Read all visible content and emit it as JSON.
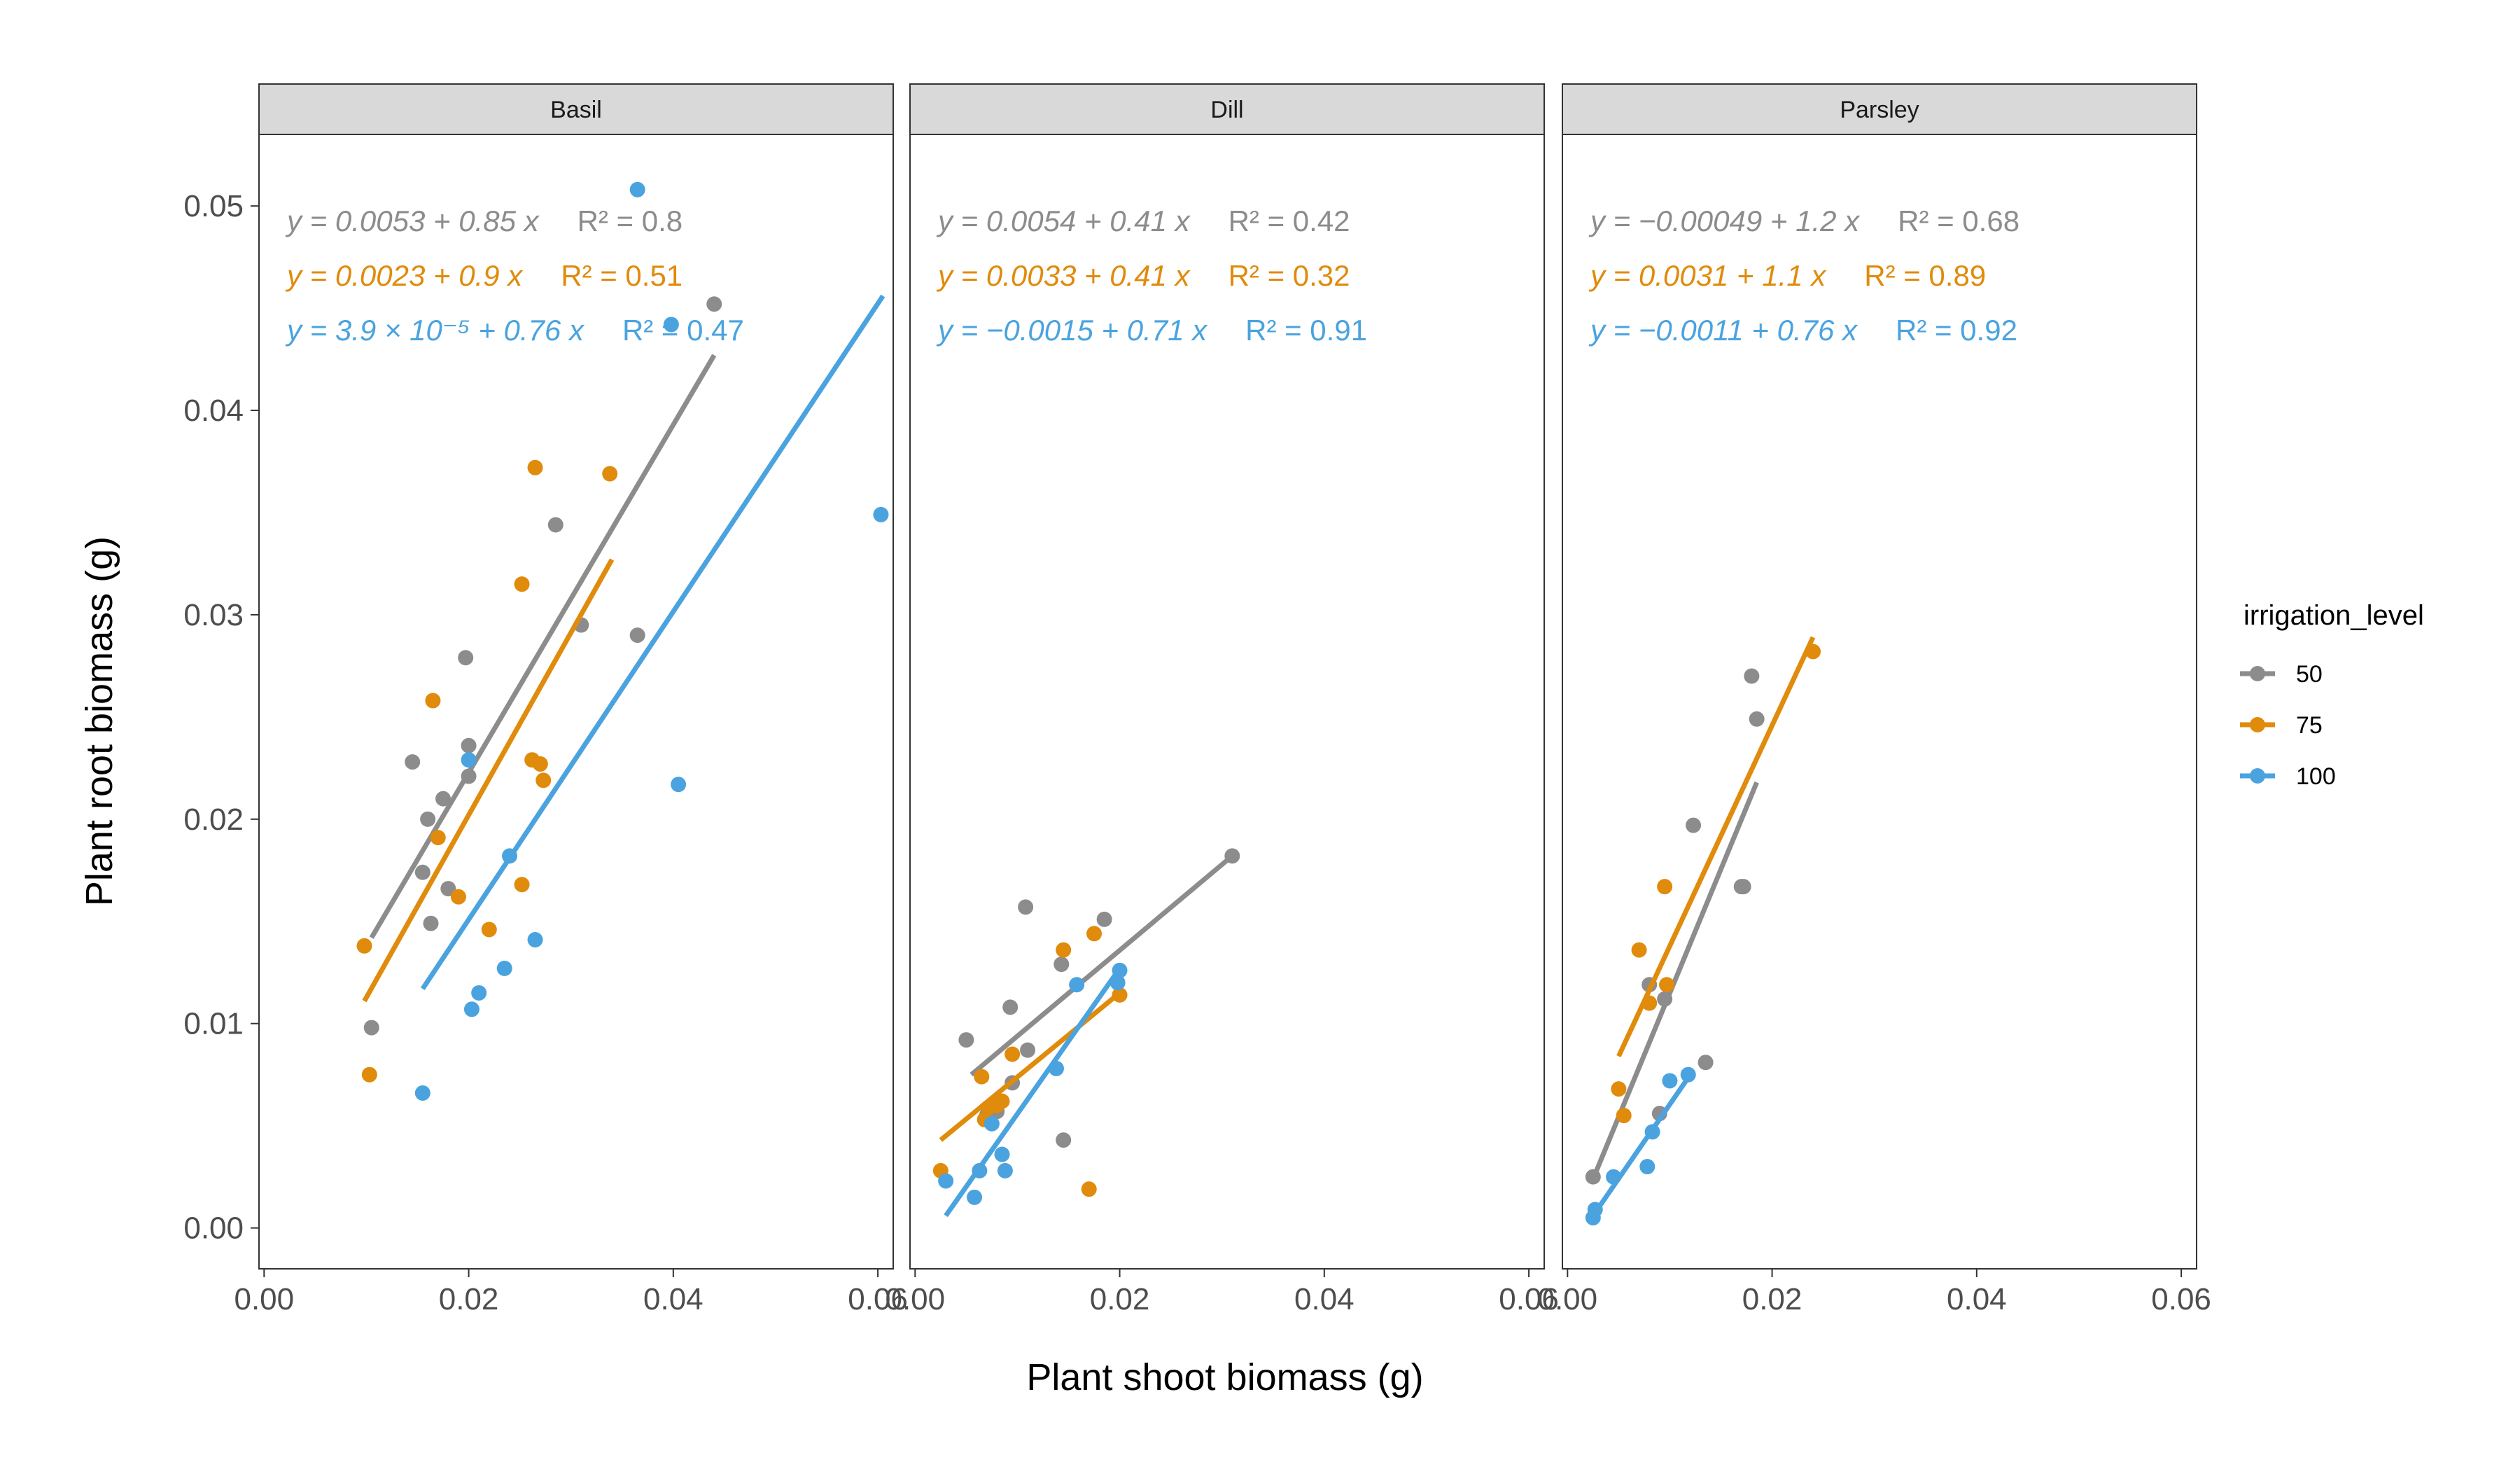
{
  "colors": {
    "50": "#8c8c8c",
    "75": "#e08b0b",
    "100": "#4aa3df",
    "strip_bg": "#d9d9d9",
    "panel_border": "#333333"
  },
  "chart_data": {
    "type": "scatter",
    "xlabel": "Plant shoot biomass (g)",
    "ylabel": "Plant root biomass (g)",
    "xlim": [
      -0.0005,
      0.0615
    ],
    "ylim": [
      -0.002,
      0.0535
    ],
    "x_ticks": [
      0.0,
      0.02,
      0.04,
      0.06
    ],
    "x_tick_labels": [
      "0.00",
      "0.02",
      "0.04",
      "0.06"
    ],
    "y_ticks": [
      0.0,
      0.01,
      0.02,
      0.03,
      0.04,
      0.05
    ],
    "y_tick_labels": [
      "0.00",
      "0.01",
      "0.02",
      "0.03",
      "0.04",
      "0.05"
    ],
    "legend": {
      "title": "irrigation_level",
      "position": "right",
      "entries": [
        "50",
        "75",
        "100"
      ]
    },
    "panels": [
      {
        "name": "Basil",
        "series": [
          {
            "level": "50",
            "equation": "y = 0.0053 + 0.85 x",
            "r2": "R² = 0.8",
            "fit": [
              [
                0.0105,
                0.0142
              ],
              [
                0.044,
                0.0427
              ]
            ],
            "points": [
              [
                0.0105,
                0.0098
              ],
              [
                0.0145,
                0.0228
              ],
              [
                0.0155,
                0.0174
              ],
              [
                0.016,
                0.02
              ],
              [
                0.0163,
                0.0149
              ],
              [
                0.0175,
                0.021
              ],
              [
                0.018,
                0.0166
              ],
              [
                0.0197,
                0.0279
              ],
              [
                0.02,
                0.0236
              ],
              [
                0.02,
                0.0221
              ],
              [
                0.0285,
                0.0344
              ],
              [
                0.031,
                0.0295
              ],
              [
                0.0365,
                0.029
              ],
              [
                0.044,
                0.0452
              ]
            ]
          },
          {
            "level": "75",
            "equation": "y = 0.0023 + 0.9 x",
            "r2": "R² = 0.51",
            "fit": [
              [
                0.0098,
                0.0111
              ],
              [
                0.034,
                0.0327
              ]
            ],
            "points": [
              [
                0.0098,
                0.0138
              ],
              [
                0.0103,
                0.0075
              ],
              [
                0.0165,
                0.0258
              ],
              [
                0.017,
                0.0191
              ],
              [
                0.019,
                0.0162
              ],
              [
                0.022,
                0.0146
              ],
              [
                0.0252,
                0.0168
              ],
              [
                0.0252,
                0.0315
              ],
              [
                0.0262,
                0.0229
              ],
              [
                0.0265,
                0.0372
              ],
              [
                0.027,
                0.0227
              ],
              [
                0.0273,
                0.0219
              ],
              [
                0.0338,
                0.0369
              ]
            ]
          },
          {
            "level": "100",
            "equation": "y = 3.9 × 10⁻⁵ + 0.76 x",
            "r2": "R² = 0.47",
            "fit": [
              [
                0.0155,
                0.0117
              ],
              [
                0.0605,
                0.0456
              ]
            ],
            "points": [
              [
                0.0155,
                0.0066
              ],
              [
                0.02,
                0.0229
              ],
              [
                0.0203,
                0.0107
              ],
              [
                0.021,
                0.0115
              ],
              [
                0.0235,
                0.0127
              ],
              [
                0.024,
                0.0182
              ],
              [
                0.0265,
                0.0141
              ],
              [
                0.0365,
                0.0508
              ],
              [
                0.0398,
                0.0442
              ],
              [
                0.0405,
                0.0217
              ],
              [
                0.0603,
                0.0349
              ]
            ]
          }
        ]
      },
      {
        "name": "Dill",
        "series": [
          {
            "level": "50",
            "equation": "y = 0.0054 + 0.41 x",
            "r2": "R² = 0.42",
            "fit": [
              [
                0.0055,
                0.0075
              ],
              [
                0.031,
                0.0182
              ]
            ],
            "points": [
              [
                0.005,
                0.0092
              ],
              [
                0.007,
                0.0055
              ],
              [
                0.008,
                0.0057
              ],
              [
                0.0093,
                0.0108
              ],
              [
                0.0095,
                0.0071
              ],
              [
                0.0108,
                0.0157
              ],
              [
                0.011,
                0.0087
              ],
              [
                0.0143,
                0.0129
              ],
              [
                0.0145,
                0.0043
              ],
              [
                0.0185,
                0.0151
              ],
              [
                0.031,
                0.0182
              ]
            ]
          },
          {
            "level": "75",
            "equation": "y = 0.0033 + 0.41 x",
            "r2": "R² = 0.32",
            "fit": [
              [
                0.0025,
                0.0043
              ],
              [
                0.02,
                0.0115
              ]
            ],
            "points": [
              [
                0.0025,
                0.0028
              ],
              [
                0.0065,
                0.0074
              ],
              [
                0.0068,
                0.0053
              ],
              [
                0.0072,
                0.0059
              ],
              [
                0.008,
                0.006
              ],
              [
                0.0085,
                0.0062
              ],
              [
                0.0095,
                0.0085
              ],
              [
                0.0145,
                0.0136
              ],
              [
                0.017,
                0.0019
              ],
              [
                0.0175,
                0.0144
              ],
              [
                0.02,
                0.0114
              ]
            ]
          },
          {
            "level": "100",
            "equation": "y = −0.0015 + 0.71 x",
            "r2": "R² = 0.91",
            "fit": [
              [
                0.003,
                0.0006
              ],
              [
                0.02,
                0.0127
              ]
            ],
            "points": [
              [
                0.003,
                0.0023
              ],
              [
                0.0058,
                0.0015
              ],
              [
                0.0063,
                0.0028
              ],
              [
                0.0075,
                0.0051
              ],
              [
                0.0085,
                0.0036
              ],
              [
                0.0088,
                0.0028
              ],
              [
                0.0138,
                0.0078
              ],
              [
                0.0158,
                0.0119
              ],
              [
                0.0198,
                0.012
              ],
              [
                0.02,
                0.0126
              ]
            ]
          }
        ]
      },
      {
        "name": "Parsley",
        "series": [
          {
            "level": "50",
            "equation": "y = −0.00049 + 1.2 x",
            "r2": "R² = 0.68",
            "fit": [
              [
                0.0025,
                0.0024
              ],
              [
                0.0185,
                0.0218
              ]
            ],
            "points": [
              [
                0.0025,
                0.0025
              ],
              [
                0.008,
                0.0119
              ],
              [
                0.009,
                0.0056
              ],
              [
                0.0095,
                0.0112
              ],
              [
                0.0123,
                0.0197
              ],
              [
                0.0135,
                0.0081
              ],
              [
                0.017,
                0.0167
              ],
              [
                0.0172,
                0.0167
              ],
              [
                0.018,
                0.027
              ],
              [
                0.0185,
                0.0249
              ]
            ]
          },
          {
            "level": "75",
            "equation": "y = 0.0031 + 1.1 x",
            "r2": "R² = 0.89",
            "fit": [
              [
                0.005,
                0.0084
              ],
              [
                0.024,
                0.0289
              ]
            ],
            "points": [
              [
                0.005,
                0.0068
              ],
              [
                0.0055,
                0.0055
              ],
              [
                0.007,
                0.0136
              ],
              [
                0.008,
                0.011
              ],
              [
                0.0095,
                0.0167
              ],
              [
                0.0097,
                0.0119
              ],
              [
                0.024,
                0.0282
              ]
            ]
          },
          {
            "level": "100",
            "equation": "y = −0.0011 + 0.76 x",
            "r2": "R² = 0.92",
            "fit": [
              [
                0.0025,
                0.0006
              ],
              [
                0.012,
                0.0075
              ]
            ],
            "points": [
              [
                0.0025,
                0.0005
              ],
              [
                0.0027,
                0.0009
              ],
              [
                0.0045,
                0.0025
              ],
              [
                0.0078,
                0.003
              ],
              [
                0.0083,
                0.0047
              ],
              [
                0.01,
                0.0072
              ],
              [
                0.0118,
                0.0075
              ]
            ]
          }
        ]
      }
    ]
  }
}
